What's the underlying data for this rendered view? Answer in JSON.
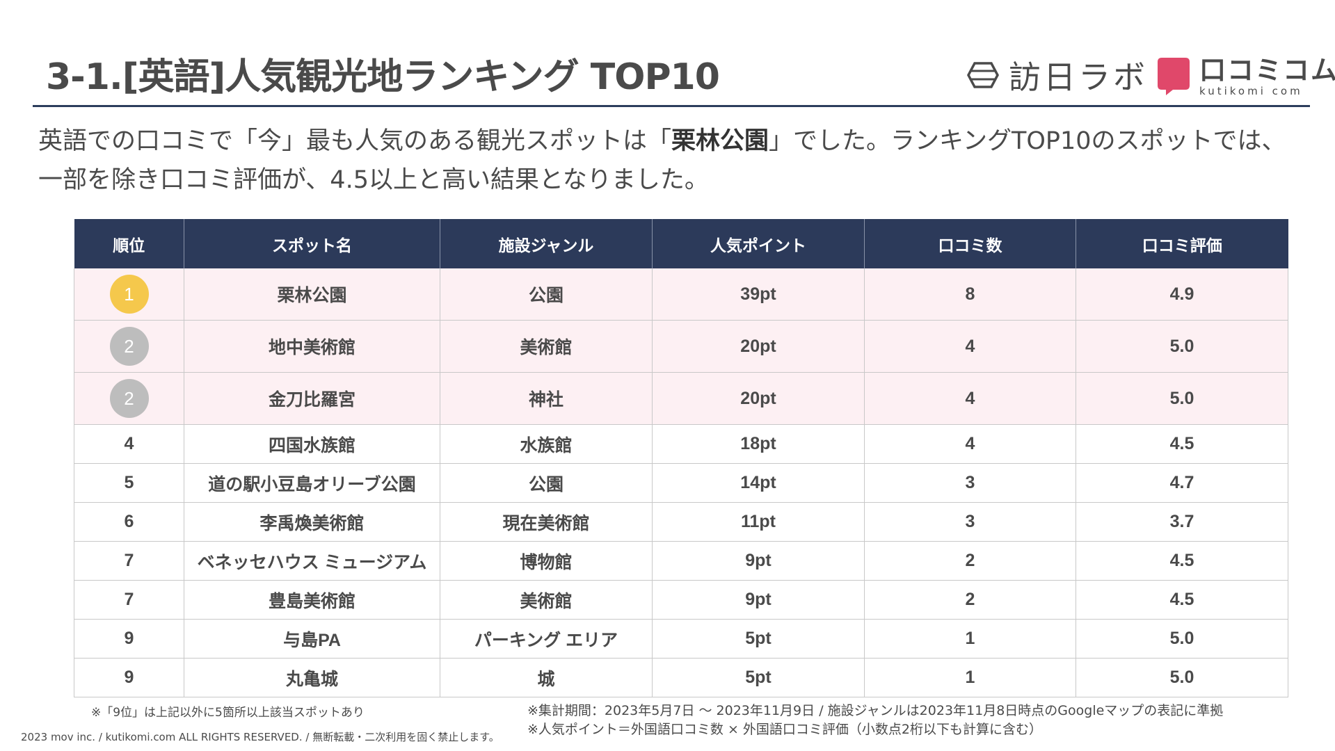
{
  "header": {
    "title": "3-1.[英語]人気観光地ランキング TOP10",
    "logo_houjin": "訪日ラボ",
    "logo_kuchikomi_jp": "口コミコム",
    "logo_kuchikomi_en": "kutikomi com",
    "logo_houjin_color": "#4a4a4a",
    "logo_kuchikomi_color": "#e0486a"
  },
  "lead": {
    "part1": "英語での口コミで「今」最も人気のある観光スポットは「",
    "highlight": "栗林公園",
    "part2": "」でした。ランキングTOP10のスポットでは、一部を除き口コミ評価が、4.5以上と高い結果となりました。"
  },
  "table": {
    "headers": [
      "順位",
      "スポット名",
      "施設ジャンル",
      "人気ポイント",
      "口コミ数",
      "口コミ評価"
    ],
    "rows": [
      {
        "rank": "1",
        "spot": "栗林公園",
        "genre": "公園",
        "points": "39pt",
        "reviews": "8",
        "rating": "4.9"
      },
      {
        "rank": "2",
        "spot": "地中美術館",
        "genre": "美術館",
        "points": "20pt",
        "reviews": "4",
        "rating": "5.0"
      },
      {
        "rank": "2",
        "spot": "金刀比羅宮",
        "genre": "神社",
        "points": "20pt",
        "reviews": "4",
        "rating": "5.0"
      },
      {
        "rank": "4",
        "spot": "四国水族館",
        "genre": "水族館",
        "points": "18pt",
        "reviews": "4",
        "rating": "4.5"
      },
      {
        "rank": "5",
        "spot": "道の駅小豆島オリーブ公園",
        "genre": "公園",
        "points": "14pt",
        "reviews": "3",
        "rating": "4.7"
      },
      {
        "rank": "6",
        "spot": "李禹煥美術館",
        "genre": "現在美術館",
        "points": "11pt",
        "reviews": "3",
        "rating": "3.7"
      },
      {
        "rank": "7",
        "spot": "ベネッセハウス ミュージアム",
        "genre": "博物館",
        "points": "9pt",
        "reviews": "2",
        "rating": "4.5"
      },
      {
        "rank": "7",
        "spot": "豊島美術館",
        "genre": "美術館",
        "points": "9pt",
        "reviews": "2",
        "rating": "4.5"
      },
      {
        "rank": "9",
        "spot": "与島PA",
        "genre": "パーキング エリア",
        "points": "5pt",
        "reviews": "1",
        "rating": "5.0"
      },
      {
        "rank": "9",
        "spot": "丸亀城",
        "genre": "城",
        "points": "5pt",
        "reviews": "1",
        "rating": "5.0"
      }
    ],
    "medal_colors": {
      "gold": "#f5c84c",
      "silver": "#bdbdbd"
    }
  },
  "notes": {
    "left": "※「9位」は上記以外に5箇所以上該当スポットあり",
    "right_1": "※集計期間：2023年5月7日 〜 2023年11月9日 / 施設ジャンルは2023年11月8日時点のGoogleマップの表記に準拠",
    "right_2": "※人気ポイント＝外国語口コミ数 × 外国語口コミ評価（小数点2桁以下も計算に含む）"
  },
  "footer": {
    "copyright": "2023 mov inc. / kutikomi.com ALL RIGHTS RESERVED. / 無断転載・二次利用を固く禁止します。"
  }
}
